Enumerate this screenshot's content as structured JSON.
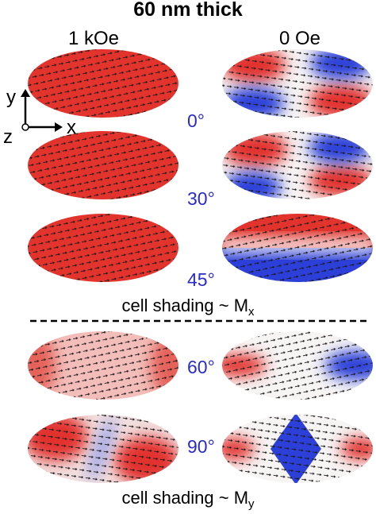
{
  "title": "60 nm thick",
  "columns": [
    "1 kOe",
    "0 Oe"
  ],
  "axes": {
    "y": "y",
    "x": "x",
    "z": "z"
  },
  "angles": [
    "0°",
    "30°",
    "45°",
    "60°",
    "90°"
  ],
  "captions": [
    {
      "text": "cell shading ~ M",
      "subscript": "x"
    },
    {
      "text": "cell shading ~ M",
      "subscript": "y"
    }
  ]
}
